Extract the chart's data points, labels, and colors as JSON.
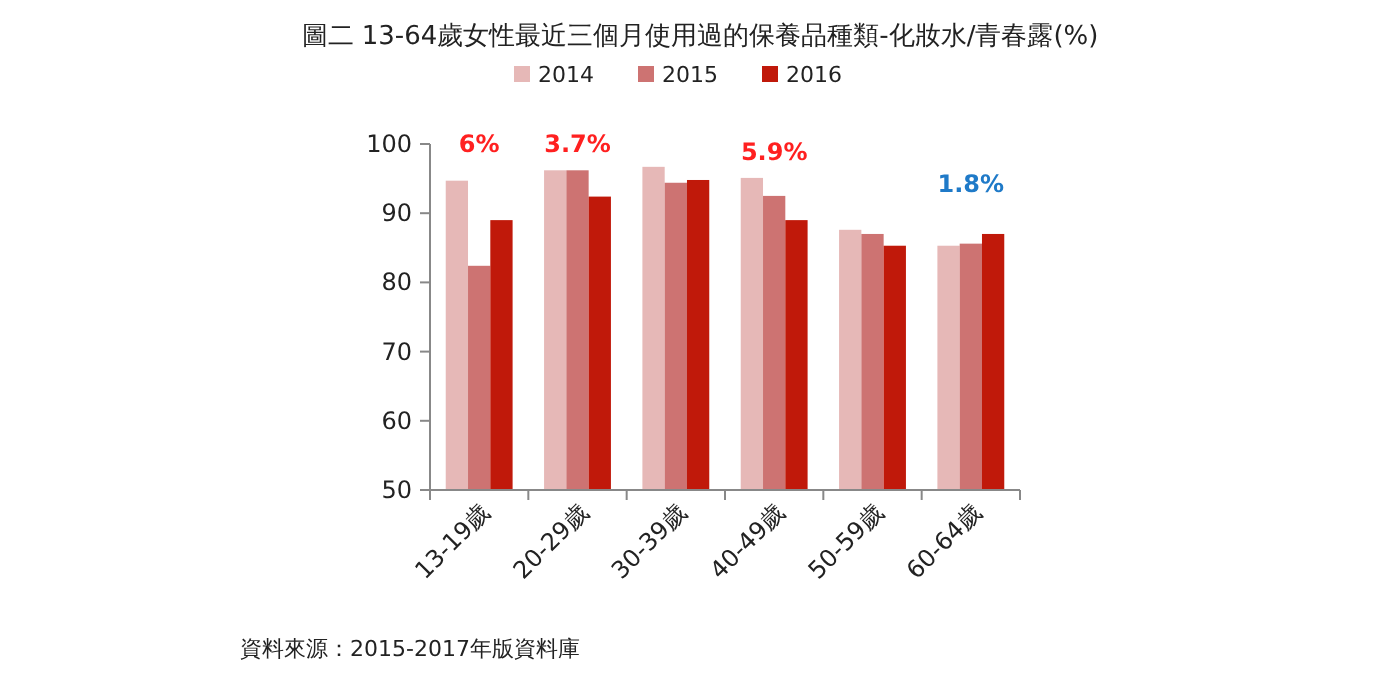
{
  "chart_data": {
    "type": "bar",
    "title": "圖二 13-64歲女性最近三個月使用過的保養品種類-化妝水/青春露(%)",
    "categories": [
      "13-19歲",
      "20-29歲",
      "30-39歲",
      "40-49歲",
      "50-59歲",
      "60-64歲"
    ],
    "series": [
      {
        "name": "2014",
        "color": "#e6b8b7",
        "values": [
          94.7,
          96.2,
          96.7,
          95.1,
          87.6,
          85.3
        ]
      },
      {
        "name": "2015",
        "color": "#cd7372",
        "values": [
          82.4,
          96.2,
          94.4,
          92.5,
          87.0,
          85.6
        ]
      },
      {
        "name": "2016",
        "color": "#c0190a",
        "values": [
          89.0,
          92.4,
          94.8,
          89.0,
          85.3,
          87.0
        ]
      }
    ],
    "ylim": [
      50,
      100
    ],
    "yticks": [
      50,
      60,
      70,
      80,
      90,
      100
    ],
    "grid": false,
    "legend": "top",
    "annotations": [
      "6%",
      "3.7%",
      "5.9%",
      "1.8%",
      "資料來源：2015-2017年版資料庫"
    ]
  }
}
